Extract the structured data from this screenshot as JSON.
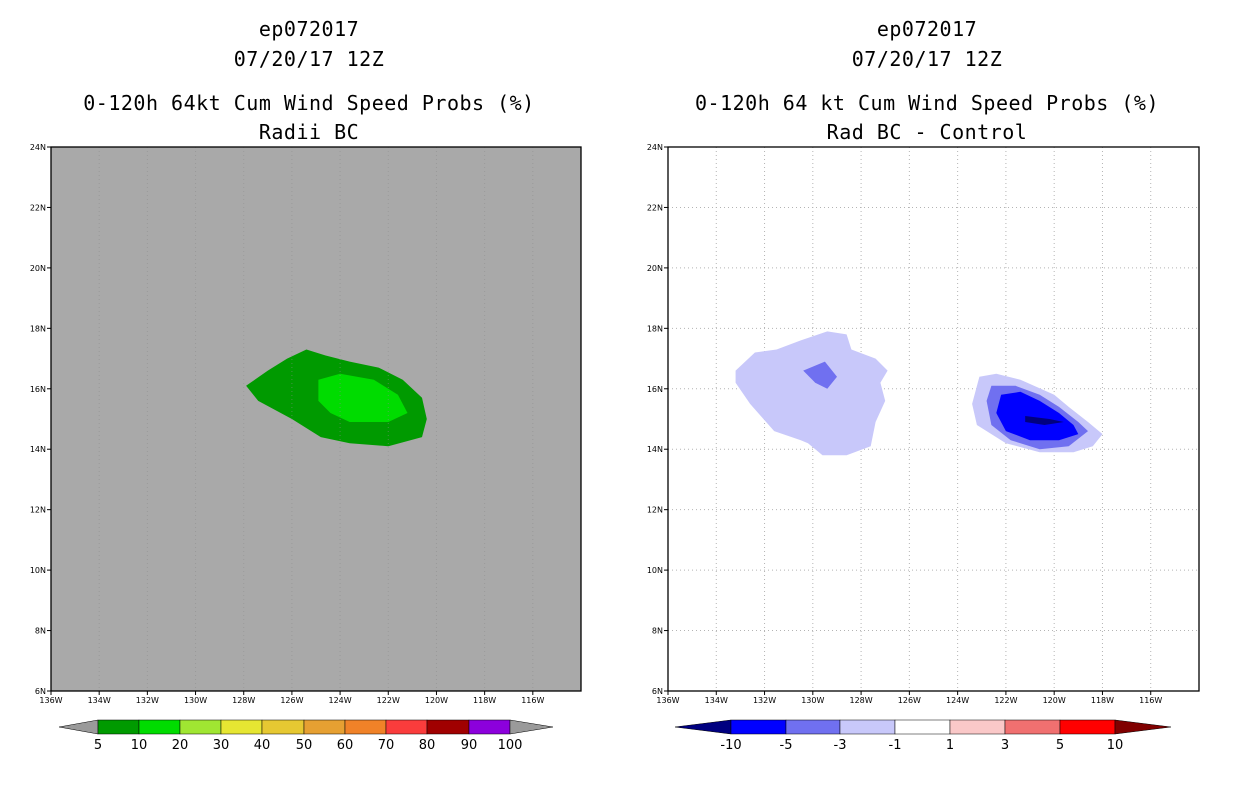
{
  "panels": [
    {
      "storm_id": "ep072017",
      "date": "07/20/17 12Z",
      "title": "0-120h 64kt Cum Wind Speed Probs (%)",
      "subtitle": "Radii BC",
      "background_color": "#a9a9a9",
      "show_grid": false,
      "legend": {
        "labels": [
          "5",
          "10",
          "20",
          "30",
          "40",
          "50",
          "60",
          "70",
          "80",
          "90",
          "100"
        ],
        "colors": [
          "#9a9a9a",
          "#009a00",
          "#00dc00",
          "#a0e632",
          "#e6e632",
          "#e6c832",
          "#e6a032",
          "#f08228",
          "#fa3c3c",
          "#a00000",
          "#8c00dc",
          "#9a9a9a"
        ]
      }
    },
    {
      "storm_id": "ep072017",
      "date": "07/20/17 12Z",
      "title": "0-120h 64 kt Cum Wind Speed Probs (%)",
      "subtitle": "Rad BC - Control",
      "background_color": "#ffffff",
      "show_grid": true,
      "legend": {
        "labels": [
          "-10",
          "-5",
          "-3",
          "-1",
          "1",
          "3",
          "5",
          "10"
        ],
        "colors": [
          "#000080",
          "#0000ff",
          "#7070f0",
          "#c8c8fa",
          "#ffffff",
          "#fac8c8",
          "#f07070",
          "#ff0000",
          "#800000"
        ]
      }
    }
  ],
  "axes": {
    "x_ticks": [
      "136W",
      "134W",
      "132W",
      "130W",
      "128W",
      "126W",
      "124W",
      "122W",
      "120W",
      "118W",
      "116W"
    ],
    "y_ticks": [
      "6N",
      "8N",
      "10N",
      "12N",
      "14N",
      "16N",
      "18N",
      "20N",
      "22N",
      "24N"
    ],
    "lon_range": [
      -136,
      -114
    ],
    "lat_range": [
      6,
      24
    ]
  },
  "chart_data": [
    {
      "type": "heatmap",
      "title": "0-120h 64kt Cum Wind Speed Probs (%)",
      "subtitle": "Radii BC",
      "xlabel": "",
      "ylabel": "",
      "xlim": [
        -136,
        -114
      ],
      "ylim": [
        6,
        24
      ],
      "contours": [
        {
          "level": "5-10",
          "color": "#009a00",
          "polygon": [
            [
              -127.9,
              16.1
            ],
            [
              -127.0,
              16.6
            ],
            [
              -126.2,
              17.0
            ],
            [
              -125.4,
              17.3
            ],
            [
              -124.6,
              17.1
            ],
            [
              -123.6,
              16.9
            ],
            [
              -122.4,
              16.7
            ],
            [
              -121.4,
              16.3
            ],
            [
              -120.6,
              15.7
            ],
            [
              -120.4,
              15.0
            ],
            [
              -120.6,
              14.4
            ],
            [
              -122.0,
              14.1
            ],
            [
              -123.6,
              14.2
            ],
            [
              -124.8,
              14.4
            ],
            [
              -126.0,
              15.0
            ],
            [
              -127.4,
              15.6
            ]
          ]
        },
        {
          "level": "10-20",
          "color": "#00dc00",
          "polygon": [
            [
              -124.9,
              16.3
            ],
            [
              -124.0,
              16.5
            ],
            [
              -122.6,
              16.3
            ],
            [
              -121.6,
              15.8
            ],
            [
              -121.2,
              15.2
            ],
            [
              -122.0,
              14.9
            ],
            [
              -123.6,
              14.9
            ],
            [
              -124.4,
              15.2
            ],
            [
              -124.9,
              15.6
            ]
          ]
        }
      ]
    },
    {
      "type": "heatmap",
      "title": "0-120h 64 kt Cum Wind Speed Probs (%)",
      "subtitle": "Rad BC - Control",
      "xlabel": "",
      "ylabel": "",
      "xlim": [
        -136,
        -114
      ],
      "ylim": [
        6,
        24
      ],
      "contours": [
        {
          "level": "-3 to -1",
          "color": "#c8c8fa",
          "polygon": [
            [
              -131.5,
              17.3
            ],
            [
              -130.5,
              17.6
            ],
            [
              -129.4,
              17.9
            ],
            [
              -128.6,
              17.8
            ],
            [
              -128.4,
              17.3
            ],
            [
              -127.4,
              17.0
            ],
            [
              -126.9,
              16.6
            ],
            [
              -127.2,
              16.2
            ],
            [
              -127.0,
              15.6
            ],
            [
              -127.4,
              14.9
            ],
            [
              -127.6,
              14.1
            ],
            [
              -128.6,
              13.8
            ],
            [
              -129.6,
              13.8
            ],
            [
              -130.2,
              14.2
            ],
            [
              -130.5,
              14.3
            ],
            [
              -131.6,
              14.6
            ],
            [
              -132.6,
              15.5
            ],
            [
              -133.2,
              16.2
            ],
            [
              -133.2,
              16.6
            ],
            [
              -132.4,
              17.2
            ]
          ]
        },
        {
          "level": "-5 to -3",
          "color": "#7070f0",
          "polygon": [
            [
              -130.4,
              16.6
            ],
            [
              -129.5,
              16.9
            ],
            [
              -129.0,
              16.4
            ],
            [
              -129.4,
              16.0
            ],
            [
              -129.9,
              16.2
            ]
          ]
        },
        {
          "level": "-3 to -1",
          "color": "#c8c8fa",
          "polygon": [
            [
              -123.1,
              16.4
            ],
            [
              -122.4,
              16.5
            ],
            [
              -121.4,
              16.3
            ],
            [
              -120.0,
              15.8
            ],
            [
              -119.4,
              15.4
            ],
            [
              -118.6,
              14.9
            ],
            [
              -118.0,
              14.5
            ],
            [
              -118.4,
              14.1
            ],
            [
              -119.2,
              13.9
            ],
            [
              -120.6,
              13.9
            ],
            [
              -122.0,
              14.2
            ],
            [
              -123.2,
              14.8
            ],
            [
              -123.4,
              15.5
            ]
          ]
        },
        {
          "level": "-5 to -3",
          "color": "#7070f0",
          "polygon": [
            [
              -122.6,
              16.1
            ],
            [
              -121.6,
              16.1
            ],
            [
              -120.6,
              15.8
            ],
            [
              -119.8,
              15.4
            ],
            [
              -119.0,
              14.9
            ],
            [
              -118.6,
              14.6
            ],
            [
              -119.4,
              14.1
            ],
            [
              -120.6,
              14.0
            ],
            [
              -121.8,
              14.3
            ],
            [
              -122.6,
              14.8
            ],
            [
              -122.8,
              15.6
            ]
          ]
        },
        {
          "level": "-10 to -5",
          "color": "#0000ff",
          "polygon": [
            [
              -122.2,
              15.8
            ],
            [
              -121.4,
              15.9
            ],
            [
              -120.6,
              15.6
            ],
            [
              -119.8,
              15.2
            ],
            [
              -119.2,
              14.8
            ],
            [
              -119.0,
              14.5
            ],
            [
              -119.8,
              14.3
            ],
            [
              -121.0,
              14.3
            ],
            [
              -122.0,
              14.6
            ],
            [
              -122.4,
              15.2
            ]
          ]
        },
        {
          "level": "< -10",
          "color": "#000080",
          "polygon": [
            [
              -121.2,
              15.1
            ],
            [
              -120.2,
              15.0
            ],
            [
              -119.6,
              14.9
            ],
            [
              -120.4,
              14.8
            ],
            [
              -121.2,
              14.9
            ]
          ]
        }
      ]
    }
  ]
}
